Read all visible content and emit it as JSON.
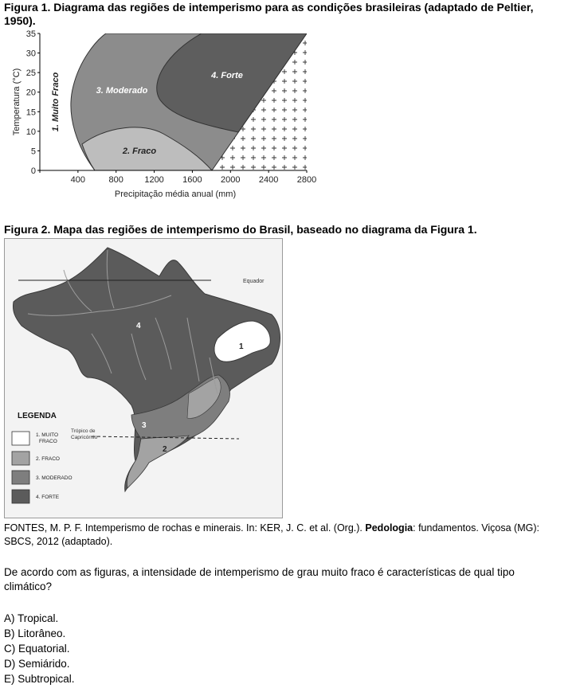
{
  "figure1": {
    "title_line1": "Figura 1. Diagrama das regiões de intemperismo para as condições brasileiras (adaptado de Peltier,",
    "title_line2": "1950).",
    "ylabel": "Temperatura (°C)",
    "xlabel": "Precipitação média anual (mm)",
    "region_labels": [
      "1. Muito Fraco",
      "2. Fraco",
      "3. Moderado",
      "4. Forte"
    ],
    "colors": {
      "muito_fraco": "#ffffff",
      "fraco": "#bdbdbd",
      "moderado": "#8c8c8c",
      "forte": "#5e5e5e"
    }
  },
  "chart_data": {
    "type": "diagram",
    "x_ticks": [
      "0",
      "400",
      "800",
      "1200",
      "1600",
      "2000",
      "2400",
      "2800"
    ],
    "y_ticks": [
      "0",
      "5",
      "10",
      "15",
      "20",
      "25",
      "30",
      "35"
    ],
    "xlim": [
      0,
      2800
    ],
    "ylim": [
      0,
      35
    ],
    "regions": [
      "1. Muito Fraco",
      "2. Fraco",
      "3. Moderado",
      "4. Forte"
    ]
  },
  "figure2": {
    "title": "Figura 2. Mapa das regiões de intemperismo do Brasil, baseado no diagrama da Figura 1.",
    "equator_label": "Equador",
    "tropic_label_line1": "Trópico de",
    "tropic_label_line2": "Capricórnio",
    "region_numbers": [
      "1",
      "2",
      "3",
      "4"
    ],
    "legend_title": "LEGENDA",
    "legend_items": [
      {
        "line1": "1. MUITO",
        "line2": "FRACO",
        "color": "#ffffff"
      },
      {
        "line1": "2. FRACO",
        "line2": "",
        "color": "#a3a3a3"
      },
      {
        "line1": "3. MODERADO",
        "line2": "",
        "color": "#7e7e7e"
      },
      {
        "line1": "4. FORTE",
        "line2": "",
        "color": "#5b5b5b"
      }
    ]
  },
  "source": {
    "part1": "FONTES, M. P. F. Intemperismo de rochas e minerais. In: KER, J. C. et al. (Org.). ",
    "bold": "Pedologia",
    "part2": ": fundamentos. Viçosa (MG):",
    "line2": "SBCS, 2012 (adaptado)."
  },
  "question": {
    "line1": "De acordo com as figuras, a intensidade de intemperismo de grau muito fraco é características de qual tipo",
    "line2": "climático?"
  },
  "options": [
    "A) Tropical.",
    "B) Litorâneo.",
    "C) Equatorial.",
    "D) Semiárido.",
    "E) Subtropical."
  ]
}
